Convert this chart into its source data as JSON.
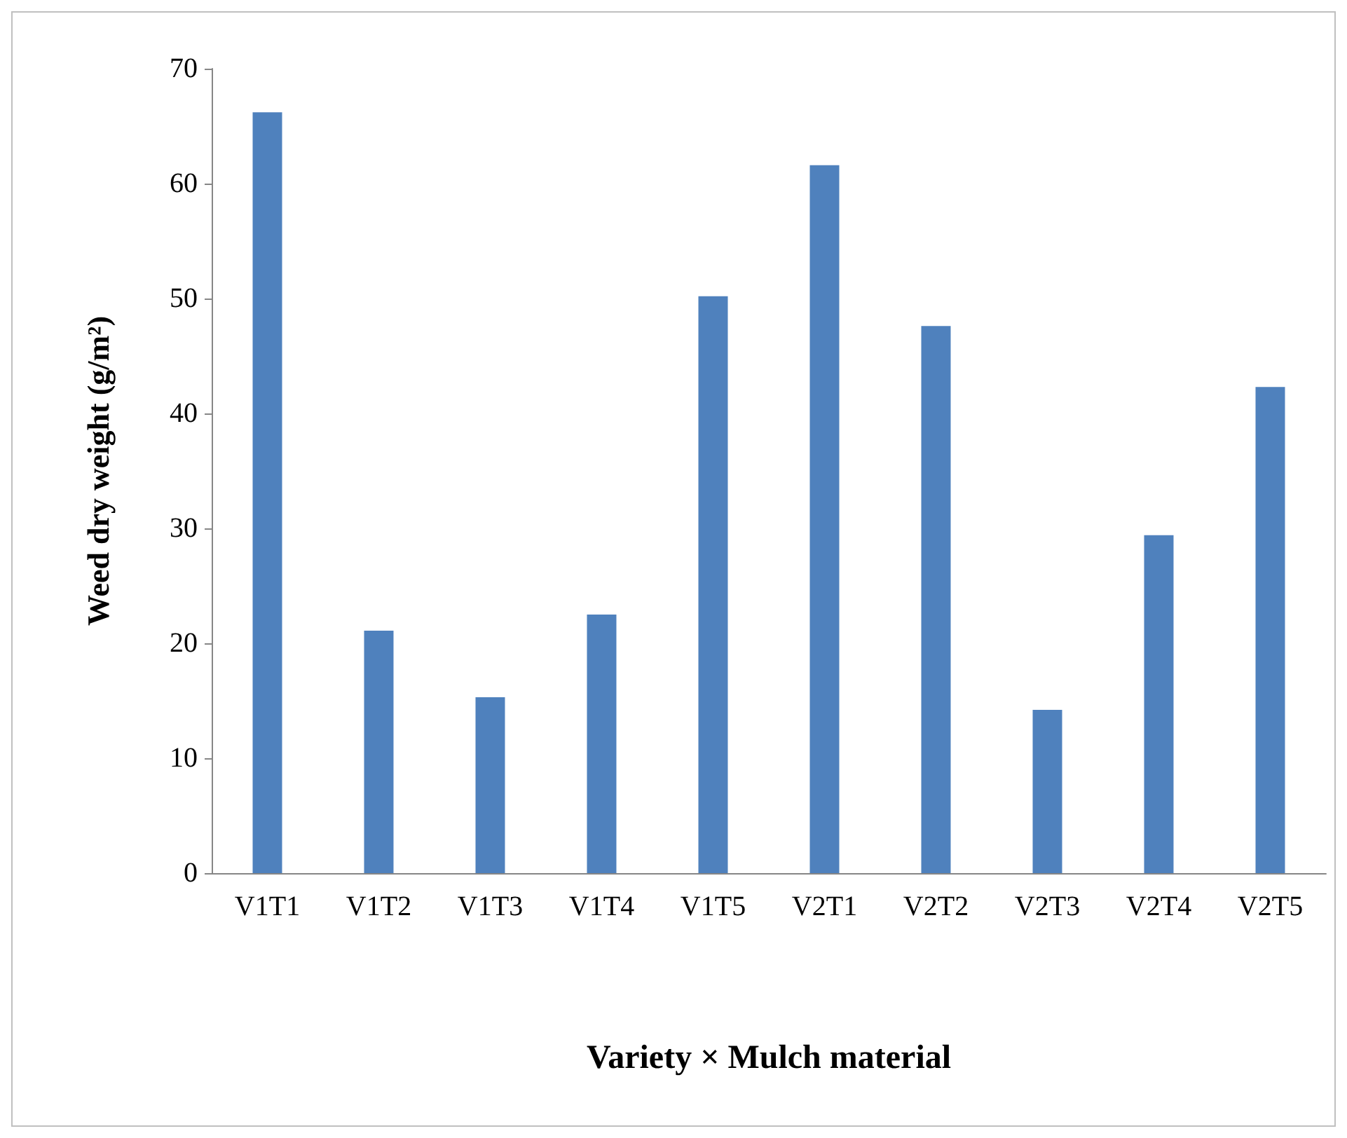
{
  "chart_data": {
    "type": "bar",
    "xlabel": "Variety × Mulch material",
    "ylabel": "Weed dry weight (g/m²)",
    "categories": [
      "V1T1",
      "V1T2",
      "V1T3",
      "V1T4",
      "V1T5",
      "V2T1",
      "V2T2",
      "V2T3",
      "V2T4",
      "V2T5"
    ],
    "values": [
      66.2,
      21.1,
      15.3,
      22.5,
      50.2,
      61.6,
      47.6,
      14.2,
      29.4,
      42.3
    ],
    "color": "#4f81bd",
    "ylim": [
      0,
      70
    ],
    "yticks": [
      0,
      10,
      20,
      30,
      40,
      50,
      60,
      70
    ],
    "grid": false
  }
}
